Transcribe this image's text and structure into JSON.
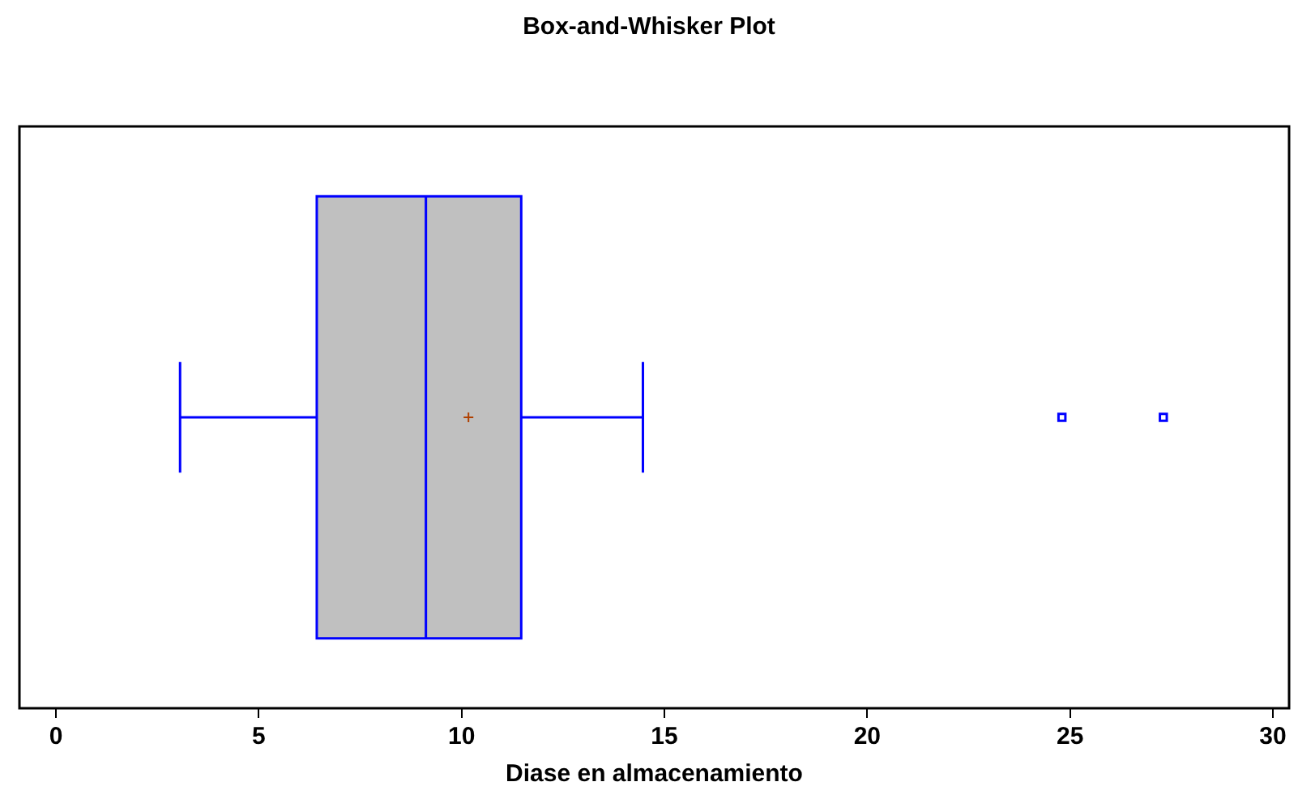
{
  "chart_data": {
    "type": "box",
    "title": "Box-and-Whisker Plot",
    "xlabel": "Diase en almacenamiento",
    "orientation": "horizontal",
    "categories": [
      null
    ],
    "color": "#c0c0c0",
    "boxes": [
      {
        "low": 3.06,
        "q1": 6.43,
        "median": 9.12,
        "q3": 11.47,
        "high": 14.47,
        "mean": 10.17,
        "outliers": [
          24.8,
          27.3
        ]
      }
    ],
    "xlim": [
      -0.9,
      30.4
    ],
    "xticks": [
      0,
      5,
      10,
      15,
      20,
      25,
      30
    ],
    "tick_labels": "x",
    "grid": false,
    "legend": false
  }
}
